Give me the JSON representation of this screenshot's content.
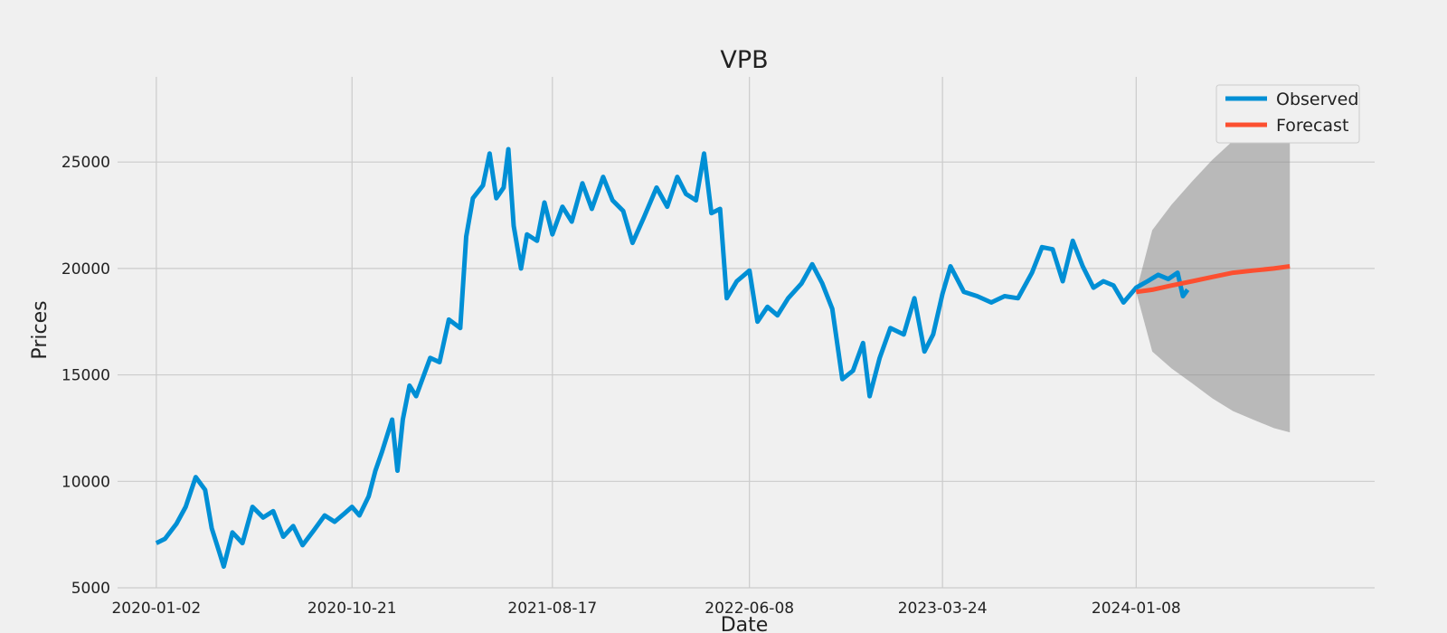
{
  "chart_data": {
    "type": "line",
    "title": "VPB",
    "xlabel": "Date",
    "ylabel": "Prices",
    "ylim": [
      5000,
      29000
    ],
    "xlim": [
      "2019-11-05",
      "2024-12-30"
    ],
    "grid": true,
    "legend_position": "top-right",
    "x_tick_labels": [
      "2020-01-02",
      "2020-10-21",
      "2021-08-17",
      "2022-06-08",
      "2023-03-24",
      "2024-01-08"
    ],
    "y_tick_labels": [
      "5000",
      "10000",
      "15000",
      "20000",
      "25000"
    ],
    "y_ticks": [
      5000,
      10000,
      15000,
      20000,
      25000
    ],
    "colors": {
      "observed": "#008fd5",
      "forecast": "#fc4f30",
      "confidence": "#8c8c8c"
    },
    "series": [
      {
        "name": "Observed",
        "points": [
          [
            "2020-01-02",
            7100
          ],
          [
            "2020-01-15",
            7300
          ],
          [
            "2020-02-01",
            8000
          ],
          [
            "2020-02-15",
            8800
          ],
          [
            "2020-03-01",
            10200
          ],
          [
            "2020-03-15",
            9600
          ],
          [
            "2020-03-25",
            7800
          ],
          [
            "2020-04-05",
            6700
          ],
          [
            "2020-04-12",
            6000
          ],
          [
            "2020-04-25",
            7600
          ],
          [
            "2020-05-10",
            7100
          ],
          [
            "2020-05-25",
            8800
          ],
          [
            "2020-06-10",
            8300
          ],
          [
            "2020-06-25",
            8600
          ],
          [
            "2020-07-10",
            7400
          ],
          [
            "2020-07-25",
            7900
          ],
          [
            "2020-08-08",
            7000
          ],
          [
            "2020-08-25",
            7700
          ],
          [
            "2020-09-10",
            8400
          ],
          [
            "2020-09-25",
            8100
          ],
          [
            "2020-10-10",
            8500
          ],
          [
            "2020-10-21",
            8800
          ],
          [
            "2020-11-01",
            8400
          ],
          [
            "2020-11-15",
            9300
          ],
          [
            "2020-11-25",
            10500
          ],
          [
            "2020-12-05",
            11400
          ],
          [
            "2020-12-20",
            12900
          ],
          [
            "2020-12-28",
            10500
          ],
          [
            "2021-01-05",
            12900
          ],
          [
            "2021-01-15",
            14500
          ],
          [
            "2021-01-25",
            14000
          ],
          [
            "2021-02-15",
            15800
          ],
          [
            "2021-03-01",
            15600
          ],
          [
            "2021-03-15",
            17600
          ],
          [
            "2021-04-01",
            17200
          ],
          [
            "2021-04-10",
            21500
          ],
          [
            "2021-04-20",
            23300
          ],
          [
            "2021-05-05",
            23900
          ],
          [
            "2021-05-15",
            25400
          ],
          [
            "2021-05-25",
            23300
          ],
          [
            "2021-06-05",
            23800
          ],
          [
            "2021-06-12",
            25600
          ],
          [
            "2021-06-20",
            22000
          ],
          [
            "2021-07-01",
            20000
          ],
          [
            "2021-07-10",
            21600
          ],
          [
            "2021-07-25",
            21300
          ],
          [
            "2021-08-05",
            23100
          ],
          [
            "2021-08-17",
            21600
          ],
          [
            "2021-09-01",
            22900
          ],
          [
            "2021-09-15",
            22200
          ],
          [
            "2021-10-01",
            24000
          ],
          [
            "2021-10-15",
            22800
          ],
          [
            "2021-11-01",
            24300
          ],
          [
            "2021-11-15",
            23200
          ],
          [
            "2021-12-01",
            22700
          ],
          [
            "2021-12-15",
            21200
          ],
          [
            "2022-01-01",
            22400
          ],
          [
            "2022-01-20",
            23800
          ],
          [
            "2022-02-05",
            22900
          ],
          [
            "2022-02-20",
            24300
          ],
          [
            "2022-03-05",
            23500
          ],
          [
            "2022-03-20",
            23200
          ],
          [
            "2022-04-01",
            25400
          ],
          [
            "2022-04-12",
            22600
          ],
          [
            "2022-04-25",
            22800
          ],
          [
            "2022-05-05",
            18600
          ],
          [
            "2022-05-20",
            19400
          ],
          [
            "2022-06-08",
            19900
          ],
          [
            "2022-06-20",
            17500
          ],
          [
            "2022-07-05",
            18200
          ],
          [
            "2022-07-20",
            17800
          ],
          [
            "2022-08-05",
            18600
          ],
          [
            "2022-08-25",
            19300
          ],
          [
            "2022-09-10",
            20200
          ],
          [
            "2022-09-25",
            19300
          ],
          [
            "2022-10-10",
            18100
          ],
          [
            "2022-10-25",
            14800
          ],
          [
            "2022-11-10",
            15200
          ],
          [
            "2022-11-25",
            16500
          ],
          [
            "2022-12-05",
            14000
          ],
          [
            "2022-12-20",
            15800
          ],
          [
            "2023-01-05",
            17200
          ],
          [
            "2023-01-25",
            16900
          ],
          [
            "2023-02-10",
            18600
          ],
          [
            "2023-02-25",
            16100
          ],
          [
            "2023-03-10",
            16900
          ],
          [
            "2023-03-24",
            18800
          ],
          [
            "2023-04-05",
            20100
          ],
          [
            "2023-04-25",
            18900
          ],
          [
            "2023-05-15",
            18700
          ],
          [
            "2023-06-05",
            18400
          ],
          [
            "2023-06-25",
            18700
          ],
          [
            "2023-07-15",
            18600
          ],
          [
            "2023-08-05",
            19800
          ],
          [
            "2023-08-20",
            21000
          ],
          [
            "2023-09-05",
            20900
          ],
          [
            "2023-09-20",
            19400
          ],
          [
            "2023-10-05",
            21300
          ],
          [
            "2023-10-20",
            20100
          ],
          [
            "2023-11-05",
            19100
          ],
          [
            "2023-11-20",
            19400
          ],
          [
            "2023-12-05",
            19200
          ],
          [
            "2023-12-20",
            18400
          ],
          [
            "2024-01-08",
            19100
          ],
          [
            "2024-01-25",
            19400
          ],
          [
            "2024-02-10",
            19700
          ],
          [
            "2024-02-25",
            19500
          ],
          [
            "2024-03-10",
            19800
          ],
          [
            "2024-03-18",
            18700
          ],
          [
            "2024-03-25",
            19000
          ]
        ]
      },
      {
        "name": "Forecast",
        "points": [
          [
            "2024-01-08",
            18900
          ],
          [
            "2024-02-01",
            19000
          ],
          [
            "2024-03-01",
            19200
          ],
          [
            "2024-04-01",
            19400
          ],
          [
            "2024-05-01",
            19600
          ],
          [
            "2024-06-01",
            19800
          ],
          [
            "2024-07-01",
            19900
          ],
          [
            "2024-08-01",
            20000
          ],
          [
            "2024-08-25",
            20100
          ]
        ],
        "upper": [
          [
            "2024-01-08",
            18900
          ],
          [
            "2024-02-01",
            21800
          ],
          [
            "2024-03-01",
            23000
          ],
          [
            "2024-04-01",
            24100
          ],
          [
            "2024-05-01",
            25100
          ],
          [
            "2024-06-01",
            26000
          ],
          [
            "2024-07-01",
            26800
          ],
          [
            "2024-08-01",
            27500
          ],
          [
            "2024-08-25",
            27700
          ]
        ],
        "lower": [
          [
            "2024-01-08",
            18900
          ],
          [
            "2024-02-01",
            16100
          ],
          [
            "2024-03-01",
            15300
          ],
          [
            "2024-04-01",
            14600
          ],
          [
            "2024-05-01",
            13900
          ],
          [
            "2024-06-01",
            13300
          ],
          [
            "2024-07-01",
            12900
          ],
          [
            "2024-08-01",
            12500
          ],
          [
            "2024-08-25",
            12300
          ]
        ]
      }
    ]
  }
}
